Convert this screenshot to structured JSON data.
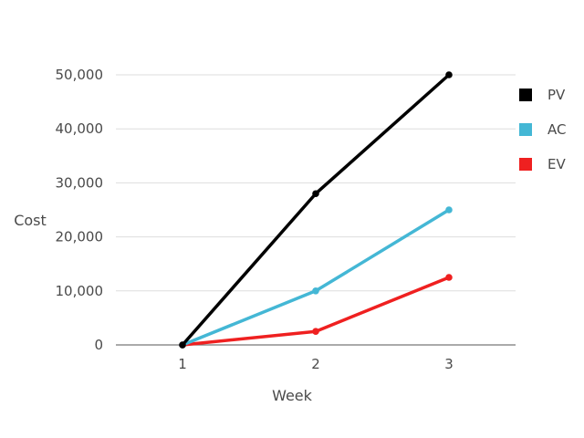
{
  "chart_data": {
    "type": "line",
    "title": "",
    "xlabel": "Week",
    "ylabel": "Cost",
    "x": [
      1,
      2,
      3
    ],
    "x_tick_labels": [
      "1",
      "2",
      "3"
    ],
    "ylim": [
      0,
      50000
    ],
    "y_ticks": [
      0,
      10000,
      20000,
      30000,
      40000,
      50000
    ],
    "y_tick_labels": [
      "0",
      "10,000",
      "20,000",
      "30,000",
      "40,000",
      "50,000"
    ],
    "grid": true,
    "legend_position": "right",
    "series": [
      {
        "name": "PV",
        "color": "#000000",
        "values": [
          0,
          28000,
          50000
        ]
      },
      {
        "name": "AC",
        "color": "#44b7d5",
        "values": [
          0,
          10000,
          25000
        ]
      },
      {
        "name": "EV",
        "color": "#ef2020",
        "values": [
          0,
          2500,
          12500
        ]
      }
    ]
  }
}
